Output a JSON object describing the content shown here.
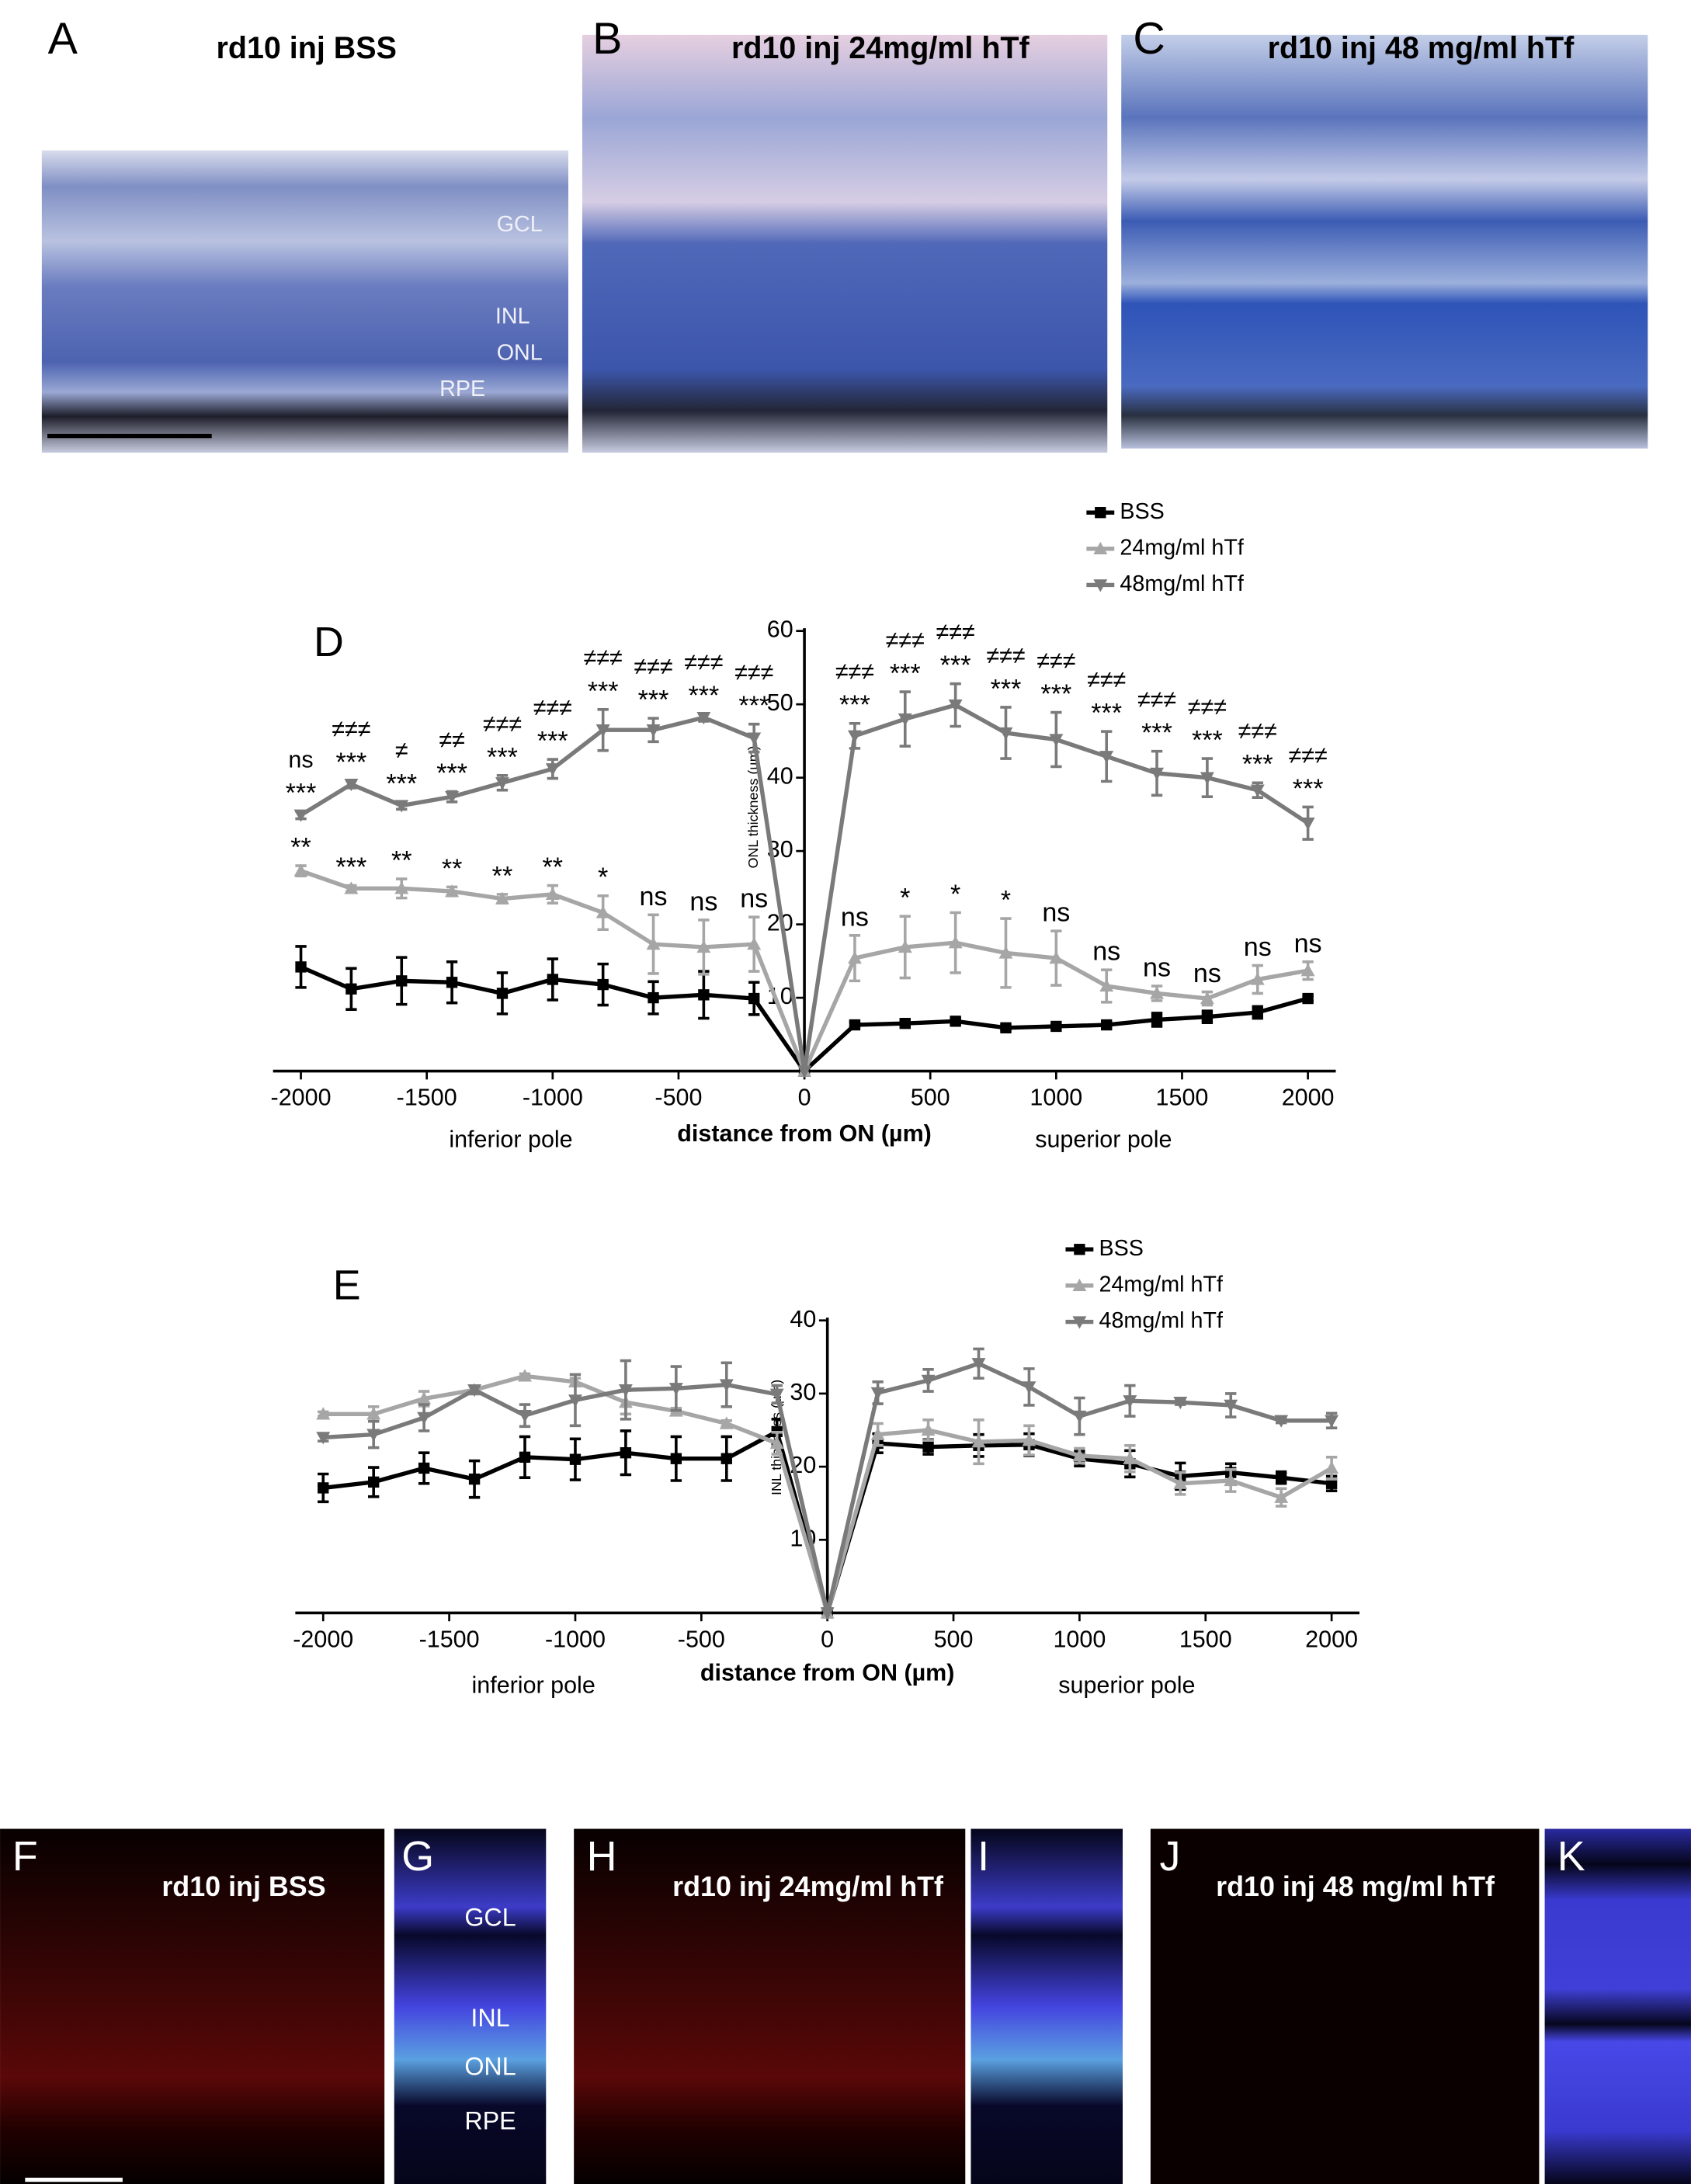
{
  "panels": [
    {
      "letter": "A",
      "title": "rd10 inj BSS",
      "labels": [
        "GCL",
        "INL",
        "ONL",
        "RPE"
      ]
    },
    {
      "letter": "B",
      "title": "rd10 inj 24mg/ml hTf"
    },
    {
      "letter": "C",
      "title": "rd10 inj 48 mg/ml hTf"
    }
  ],
  "chart_data": [
    {
      "panel": "D",
      "type": "line",
      "x": [
        -2000,
        -1800,
        -1600,
        -1400,
        -1200,
        -1000,
        -800,
        -600,
        -400,
        -200,
        0,
        200,
        400,
        600,
        800,
        1000,
        1200,
        1400,
        1600,
        1800,
        2000
      ],
      "xlim": [
        -2000,
        2000
      ],
      "xticks": [
        -2000,
        -1500,
        -1000,
        -500,
        0,
        500,
        1000,
        1500,
        2000
      ],
      "ylim": [
        0,
        60
      ],
      "yticks": [
        10,
        20,
        30,
        40,
        50,
        60
      ],
      "ylabel": "ONL thickness (µm)",
      "xlabel": "distance from ON (µm)",
      "x_annotations": [
        "inferior pole",
        "superior pole"
      ],
      "comparison": [
        "ns",
        "≠≠≠",
        "≠",
        "≠≠",
        "≠≠≠",
        "≠≠≠",
        "≠≠≠",
        "≠≠≠",
        "≠≠≠",
        "≠≠≠",
        null,
        "≠≠≠",
        "≠≠≠",
        "≠≠≠",
        "≠≠≠",
        "≠≠≠",
        "≠≠≠",
        "≠≠≠",
        "≠≠≠",
        "≠≠≠",
        "≠≠≠"
      ],
      "series": [
        {
          "name": "BSS",
          "color": "#000000",
          "marker": "square",
          "values": [
            14.2,
            11.2,
            12.3,
            12.1,
            10.6,
            12.5,
            11.8,
            10,
            10.4,
            9.9,
            0,
            6.3,
            6.5,
            6.8,
            5.9,
            6.1,
            6.3,
            7,
            7.4,
            8,
            9.9
          ],
          "errors": [
            2.8,
            2.8,
            3.2,
            2.8,
            2.8,
            2.8,
            2.8,
            2.2,
            3.2,
            2.2,
            null,
            0.4,
            0.4,
            0.4,
            0.3,
            0.3,
            0.4,
            0.9,
            0.8,
            0.8,
            0.4
          ]
        },
        {
          "name": "24mg/ml hTf",
          "color": "#a6a6a6",
          "marker": "triangle-up",
          "values": [
            27.3,
            24.9,
            24.9,
            24.5,
            23.5,
            24.1,
            21.6,
            17.3,
            16.9,
            17.3,
            0,
            15.4,
            16.9,
            17.5,
            16.1,
            15.4,
            11.6,
            10.6,
            9.9,
            12.5,
            13.7
          ],
          "errors": [
            0.7,
            0.4,
            1.3,
            0.6,
            0.6,
            1.2,
            2.3,
            4,
            3.7,
            3.7,
            null,
            3.1,
            4.2,
            4.1,
            4.7,
            3.7,
            2.2,
            1,
            0.9,
            1.9,
            1.2
          ],
          "significance": [
            "**",
            "***",
            "**",
            "**",
            "**",
            "**",
            "*",
            "ns",
            "ns",
            "ns",
            null,
            "ns",
            "*",
            "*",
            "*",
            "ns",
            "ns",
            "ns",
            "ns",
            "ns",
            "ns"
          ]
        },
        {
          "name": "48mg/ml hTf",
          "color": "#7a7a7a",
          "marker": "triangle-down",
          "values": [
            34.9,
            39.1,
            36.2,
            37.4,
            39.3,
            41.2,
            46.5,
            46.5,
            48.2,
            45.4,
            0,
            45.7,
            48,
            49.9,
            46.1,
            45.2,
            42.9,
            40.6,
            40,
            38.3,
            33.8
          ],
          "errors": [
            0.5,
            0.5,
            0.5,
            0.7,
            1,
            1.3,
            2.8,
            1.6,
            0.5,
            1.9,
            null,
            1.7,
            3.7,
            2.9,
            3.5,
            3.7,
            3.4,
            3,
            2.6,
            1,
            2.2
          ],
          "significance": [
            "***",
            "***",
            "***",
            "***",
            "***",
            "***",
            "***",
            "***",
            "***",
            "***",
            null,
            "***",
            "***",
            "***",
            "***",
            "***",
            "***",
            "***",
            "***",
            "***",
            "***"
          ]
        }
      ]
    },
    {
      "panel": "E",
      "type": "line",
      "x": [
        -2000,
        -1800,
        -1600,
        -1400,
        -1200,
        -1000,
        -800,
        -600,
        -400,
        -200,
        0,
        200,
        400,
        600,
        800,
        1000,
        1200,
        1400,
        1600,
        1800,
        2000
      ],
      "xlim": [
        -2000,
        2000
      ],
      "xticks": [
        -2000,
        -1500,
        -1000,
        -500,
        0,
        500,
        1000,
        1500,
        2000
      ],
      "ylim": [
        0,
        40
      ],
      "yticks": [
        10,
        20,
        30,
        40
      ],
      "ylabel": "INL thickness (µm)",
      "xlabel": "distance from ON (µm)",
      "x_annotations": [
        "inferior pole",
        "superior pole"
      ],
      "series": [
        {
          "name": "BSS",
          "color": "#000000",
          "marker": "square",
          "values": [
            17.1,
            17.9,
            19.8,
            18.3,
            21.3,
            21,
            21.9,
            21.1,
            21.1,
            24.8,
            0,
            23.2,
            22.7,
            22.9,
            23,
            21.1,
            20.4,
            18.7,
            19.2,
            18.5,
            17.7
          ],
          "errors": [
            1.9,
            2,
            2.1,
            2.5,
            2.8,
            2.8,
            3,
            3,
            3,
            1.7,
            null,
            1.3,
            1,
            1.5,
            1.5,
            1,
            1.8,
            1.8,
            1.2,
            0.8,
            1
          ]
        },
        {
          "name": "24mg/ml hTf",
          "color": "#a6a6a6",
          "marker": "triangle-up",
          "values": [
            27.2,
            27.2,
            29.3,
            30.5,
            32.4,
            31.6,
            28.8,
            27.6,
            25.9,
            23.2,
            0,
            24.4,
            25,
            23.4,
            23.6,
            21.5,
            21.1,
            17.7,
            18.1,
            15.8,
            19.8
          ],
          "errors": [
            0.3,
            1,
            1,
            0.5,
            0.3,
            0.5,
            1.6,
            0.4,
            0.4,
            1.5,
            null,
            1.5,
            1.4,
            3,
            2,
            1,
            1.8,
            1.5,
            1.5,
            1.2,
            1.5
          ]
        },
        {
          "name": "48mg/ml hTf",
          "color": "#7a7a7a",
          "marker": "triangle-down",
          "values": [
            24,
            24.4,
            26.7,
            30.5,
            27,
            29.1,
            30.5,
            30.7,
            31.2,
            29.9,
            0,
            30.1,
            31.8,
            34.1,
            30.9,
            26.9,
            29,
            28.8,
            28.4,
            26.3,
            26.3
          ],
          "errors": [
            0.5,
            1.8,
            1.8,
            0.5,
            1.5,
            3.5,
            4,
            3,
            3,
            1.2,
            null,
            1.5,
            1.5,
            2,
            2.5,
            2.5,
            2.1,
            0.3,
            1.6,
            0.3,
            1
          ]
        }
      ]
    }
  ],
  "fluorescence_panels": [
    {
      "letter": "F",
      "title": "rd10 inj BSS"
    },
    {
      "letter": "G",
      "labels": [
        "GCL",
        "INL",
        "ONL",
        "RPE"
      ]
    },
    {
      "letter": "H",
      "title": "rd10 inj 24mg/ml hTf"
    },
    {
      "letter": "I"
    },
    {
      "letter": "J",
      "title": "rd10 inj 48 mg/ml hTf"
    },
    {
      "letter": "K"
    }
  ]
}
